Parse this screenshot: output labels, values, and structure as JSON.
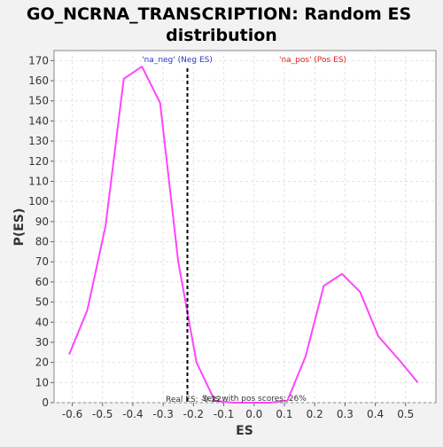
{
  "chart_data": {
    "type": "line",
    "title_lines": [
      "GO_NCRNA_TRANSCRIPTION: Random ES",
      "distribution"
    ],
    "xlabel": "ES",
    "ylabel": "P(ES)",
    "xlim": [
      -0.66,
      0.6
    ],
    "ylim": [
      0,
      175
    ],
    "x_ticks": [
      -0.6,
      -0.5,
      -0.4,
      -0.3,
      -0.2,
      -0.1,
      0.0,
      0.1,
      0.2,
      0.3,
      0.4,
      0.5
    ],
    "x_tick_labels": [
      "-0.6",
      "-0.5",
      "-0.4",
      "-0.3",
      "-0.2",
      "-0.1",
      "0.0",
      "0.1",
      "0.2",
      "0.3",
      "0.4",
      "0.5"
    ],
    "y_ticks": [
      0,
      10,
      20,
      30,
      40,
      50,
      60,
      70,
      80,
      90,
      100,
      110,
      120,
      130,
      140,
      150,
      160,
      170
    ],
    "y_tick_labels": [
      "0",
      "10",
      "20",
      "30",
      "40",
      "50",
      "60",
      "70",
      "80",
      "90",
      "100",
      "110",
      "120",
      "130",
      "140",
      "150",
      "160",
      "170"
    ],
    "grid": true,
    "series": [
      {
        "color": "#ff44ff",
        "x": [
          -0.61,
          -0.55,
          -0.49,
          -0.43,
          -0.37,
          -0.31,
          -0.25,
          -0.19,
          -0.13,
          -0.07,
          -0.01,
          0.05,
          0.11,
          0.17,
          0.23,
          0.29,
          0.35,
          0.41,
          0.48,
          0.54
        ],
        "y": [
          24,
          46,
          88,
          161,
          167,
          149,
          70,
          20,
          1,
          0,
          0,
          0,
          1,
          23,
          58,
          64,
          55,
          33,
          21,
          10
        ]
      }
    ],
    "real_es": -0.22,
    "real_es_color": "#000000",
    "annotations": {
      "neg_label": "'na_neg' (Neg ES)",
      "neg_color": "#3333cc",
      "pos_label": "'na_pos' (Pos ES)",
      "pos_color": "#dd2222",
      "real_es_label": "Real ES: -0.22",
      "sets_label": "Sets with pos scores: 26%"
    }
  }
}
